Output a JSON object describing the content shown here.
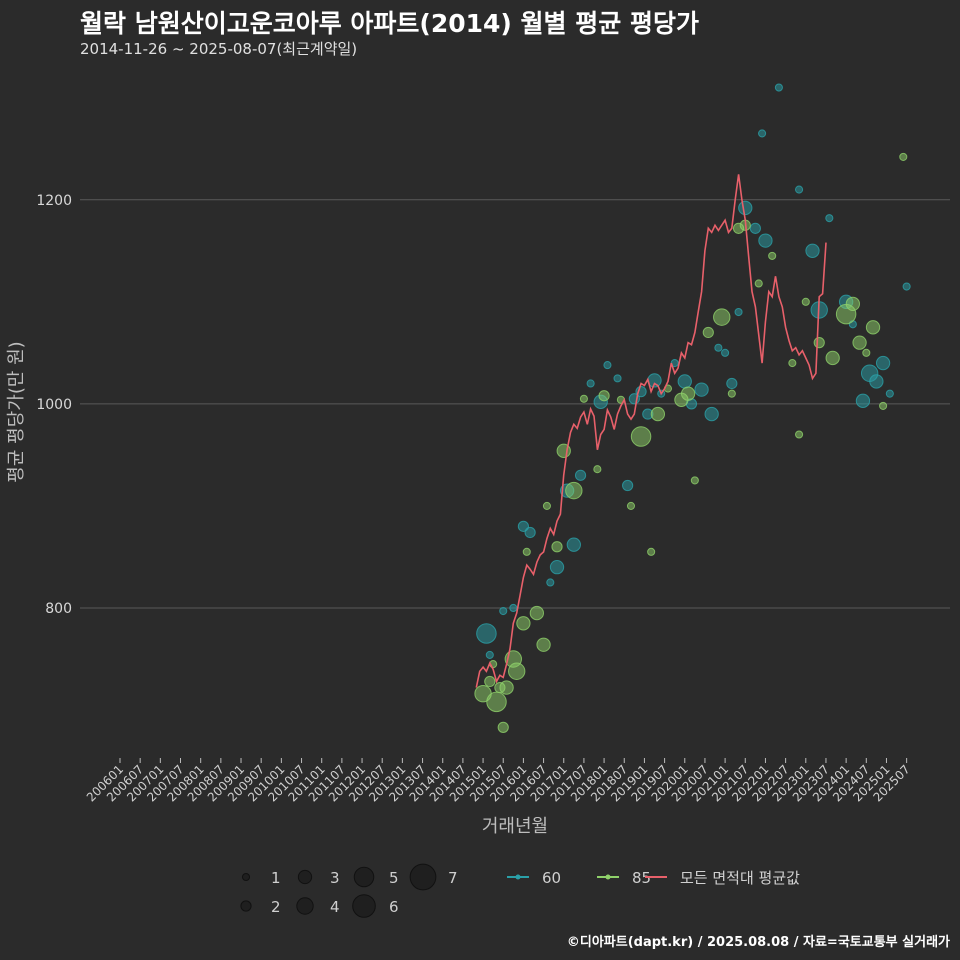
{
  "header": {
    "title": "월락 남원산이고운코아루 아파트(2014) 월별 평균 평당가",
    "subtitle": "2014-11-26 ~ 2025-08-07(최근계약일)"
  },
  "footer": {
    "credit": "©디아파트(dapt.kr) / 2025.08.08 / 자료=국토교통부 실거래가"
  },
  "colors": {
    "background": "#2b2b2b",
    "grid": "#5a5a5a",
    "s60": "#2aa0a8",
    "s85": "#8fd16a",
    "avg": "#e8606a"
  },
  "chart_data": {
    "type": "scatter",
    "xlabel": "거래년월",
    "ylabel": "평균 평당가(만 원)",
    "x_ticks": [
      "200601",
      "200607",
      "200701",
      "200707",
      "200801",
      "200807",
      "200901",
      "200907",
      "201001",
      "201007",
      "201101",
      "201107",
      "201201",
      "201207",
      "201301",
      "201307",
      "201401",
      "201407",
      "201501",
      "201507",
      "201601",
      "201607",
      "201701",
      "201707",
      "201801",
      "201807",
      "201901",
      "201907",
      "202001",
      "202007",
      "202101",
      "202107",
      "202201",
      "202207",
      "202301",
      "202307",
      "202401",
      "202407",
      "202501",
      "202507"
    ],
    "y_ticks": [
      800,
      1000,
      1200
    ],
    "x_range": [
      "200601",
      "202508"
    ],
    "y_range": [
      653,
      1335
    ],
    "grid": "horizontal",
    "legend": {
      "position": "bottom",
      "size_title": "",
      "size_values": [
        1,
        2,
        3,
        4,
        5,
        6,
        7
      ],
      "series_labels": [
        "60",
        "85",
        "모든 면적대 평균값"
      ]
    },
    "series": [
      {
        "name": "60",
        "points": [
          [
            "201502",
            775,
            5
          ],
          [
            "201503",
            754,
            1
          ],
          [
            "201507",
            797,
            1
          ],
          [
            "201510",
            800,
            1
          ],
          [
            "201601",
            880,
            2
          ],
          [
            "201603",
            874,
            2
          ],
          [
            "201609",
            825,
            1
          ],
          [
            "201611",
            840,
            3
          ],
          [
            "201702",
            915,
            3
          ],
          [
            "201704",
            862,
            3
          ],
          [
            "201706",
            930,
            2
          ],
          [
            "201709",
            1020,
            1
          ],
          [
            "201712",
            1002,
            3
          ],
          [
            "201802",
            1038,
            1
          ],
          [
            "201805",
            1025,
            1
          ],
          [
            "201808",
            920,
            2
          ],
          [
            "201810",
            1005,
            2
          ],
          [
            "201812",
            1012,
            2
          ],
          [
            "201902",
            990,
            2
          ],
          [
            "201904",
            1023,
            3
          ],
          [
            "201906",
            1010,
            1
          ],
          [
            "201910",
            1040,
            1
          ],
          [
            "202001",
            1022,
            3
          ],
          [
            "202003",
            1000,
            2
          ],
          [
            "202006",
            1014,
            3
          ],
          [
            "202009",
            990,
            3
          ],
          [
            "202011",
            1055,
            1
          ],
          [
            "202101",
            1050,
            1
          ],
          [
            "202103",
            1020,
            2
          ],
          [
            "202105",
            1090,
            1
          ],
          [
            "202107",
            1192,
            3
          ],
          [
            "202110",
            1172,
            2
          ],
          [
            "202112",
            1265,
            1
          ],
          [
            "202201",
            1160,
            3
          ],
          [
            "202205",
            1310,
            1
          ],
          [
            "202211",
            1210,
            1
          ],
          [
            "202303",
            1150,
            3
          ],
          [
            "202305",
            1092,
            4
          ],
          [
            "202308",
            1182,
            1
          ],
          [
            "202401",
            1100,
            3
          ],
          [
            "202403",
            1078,
            1
          ],
          [
            "202406",
            1003,
            3
          ],
          [
            "202408",
            1030,
            4
          ],
          [
            "202410",
            1022,
            3
          ],
          [
            "202412",
            1040,
            3
          ],
          [
            "202502",
            1010,
            1
          ],
          [
            "202507",
            1115,
            1
          ]
        ]
      },
      {
        "name": "85",
        "points": [
          [
            "201501",
            716,
            4
          ],
          [
            "201503",
            728,
            2
          ],
          [
            "201504",
            745,
            1
          ],
          [
            "201505",
            708,
            5
          ],
          [
            "201506",
            722,
            2
          ],
          [
            "201507",
            683,
            2
          ],
          [
            "201508",
            722,
            3
          ],
          [
            "201510",
            750,
            4
          ],
          [
            "201511",
            738,
            4
          ],
          [
            "201601",
            785,
            3
          ],
          [
            "201602",
            855,
            1
          ],
          [
            "201605",
            795,
            3
          ],
          [
            "201607",
            764,
            3
          ],
          [
            "201608",
            900,
            1
          ],
          [
            "201611",
            860,
            2
          ],
          [
            "201701",
            954,
            3
          ],
          [
            "201704",
            915,
            4
          ],
          [
            "201707",
            1005,
            1
          ],
          [
            "201711",
            936,
            1
          ],
          [
            "201801",
            1008,
            2
          ],
          [
            "201806",
            1004,
            1
          ],
          [
            "201809",
            900,
            1
          ],
          [
            "201812",
            968,
            5
          ],
          [
            "201903",
            855,
            1
          ],
          [
            "201905",
            990,
            3
          ],
          [
            "201908",
            1015,
            1
          ],
          [
            "201912",
            1004,
            3
          ],
          [
            "202002",
            1010,
            3
          ],
          [
            "202004",
            925,
            1
          ],
          [
            "202008",
            1070,
            2
          ],
          [
            "202012",
            1085,
            4
          ],
          [
            "202103",
            1010,
            1
          ],
          [
            "202105",
            1172,
            2
          ],
          [
            "202107",
            1175,
            2
          ],
          [
            "202111",
            1118,
            1
          ],
          [
            "202203",
            1145,
            1
          ],
          [
            "202209",
            1040,
            1
          ],
          [
            "202211",
            970,
            1
          ],
          [
            "202301",
            1100,
            1
          ],
          [
            "202305",
            1060,
            2
          ],
          [
            "202309",
            1045,
            3
          ],
          [
            "202401",
            1088,
            5
          ],
          [
            "202403",
            1098,
            3
          ],
          [
            "202405",
            1060,
            3
          ],
          [
            "202407",
            1050,
            1
          ],
          [
            "202409",
            1075,
            3
          ],
          [
            "202412",
            998,
            1
          ],
          [
            "202506",
            1242,
            1
          ]
        ]
      }
    ],
    "average": {
      "name": "모든 면적대 평균값",
      "points": [
        [
          "201411",
          722
        ],
        [
          "201412",
          738
        ],
        [
          "201501",
          742
        ],
        [
          "201502",
          738
        ],
        [
          "201503",
          746
        ],
        [
          "201504",
          740
        ],
        [
          "201505",
          728
        ],
        [
          "201506",
          734
        ],
        [
          "201507",
          732
        ],
        [
          "201508",
          745
        ],
        [
          "201509",
          760
        ],
        [
          "201510",
          785
        ],
        [
          "201511",
          795
        ],
        [
          "201512",
          812
        ],
        [
          "201601",
          830
        ],
        [
          "201602",
          842
        ],
        [
          "201603",
          838
        ],
        [
          "201604",
          833
        ],
        [
          "201605",
          845
        ],
        [
          "201606",
          852
        ],
        [
          "201607",
          855
        ],
        [
          "201608",
          868
        ],
        [
          "201609",
          878
        ],
        [
          "201610",
          872
        ],
        [
          "201611",
          885
        ],
        [
          "201612",
          892
        ],
        [
          "201701",
          930
        ],
        [
          "201702",
          955
        ],
        [
          "201703",
          972
        ],
        [
          "201704",
          980
        ],
        [
          "201705",
          976
        ],
        [
          "201706",
          987
        ],
        [
          "201707",
          992
        ],
        [
          "201708",
          980
        ],
        [
          "201709",
          995
        ],
        [
          "201710",
          988
        ],
        [
          "201711",
          955
        ],
        [
          "201712",
          970
        ],
        [
          "201801",
          975
        ],
        [
          "201802",
          994
        ],
        [
          "201803",
          987
        ],
        [
          "201804",
          975
        ],
        [
          "201805",
          990
        ],
        [
          "201806",
          998
        ],
        [
          "201807",
          1004
        ],
        [
          "201808",
          990
        ],
        [
          "201809",
          985
        ],
        [
          "201810",
          990
        ],
        [
          "201811",
          1010
        ],
        [
          "201812",
          1020
        ],
        [
          "201901",
          1018
        ],
        [
          "201902",
          1024
        ],
        [
          "201903",
          1012
        ],
        [
          "201904",
          1020
        ],
        [
          "201905",
          1018
        ],
        [
          "201906",
          1010
        ],
        [
          "201907",
          1015
        ],
        [
          "201908",
          1022
        ],
        [
          "201909",
          1040
        ],
        [
          "201910",
          1030
        ],
        [
          "201911",
          1035
        ],
        [
          "201912",
          1050
        ],
        [
          "202001",
          1045
        ],
        [
          "202002",
          1060
        ],
        [
          "202003",
          1058
        ],
        [
          "202004",
          1070
        ],
        [
          "202005",
          1090
        ],
        [
          "202006",
          1110
        ],
        [
          "202007",
          1150
        ],
        [
          "202008",
          1172
        ],
        [
          "202009",
          1168
        ],
        [
          "202010",
          1175
        ],
        [
          "202011",
          1170
        ],
        [
          "202012",
          1175
        ],
        [
          "202101",
          1180
        ],
        [
          "202102",
          1168
        ],
        [
          "202103",
          1172
        ],
        [
          "202104",
          1200
        ],
        [
          "202105",
          1225
        ],
        [
          "202106",
          1200
        ],
        [
          "202107",
          1180
        ],
        [
          "202108",
          1145
        ],
        [
          "202109",
          1110
        ],
        [
          "202110",
          1095
        ],
        [
          "202111",
          1068
        ],
        [
          "202112",
          1040
        ],
        [
          "202201",
          1080
        ],
        [
          "202202",
          1110
        ],
        [
          "202203",
          1105
        ],
        [
          "202204",
          1125
        ],
        [
          "202205",
          1105
        ],
        [
          "202206",
          1095
        ],
        [
          "202207",
          1075
        ],
        [
          "202208",
          1062
        ],
        [
          "202209",
          1052
        ],
        [
          "202210",
          1055
        ],
        [
          "202211",
          1048
        ],
        [
          "202212",
          1052
        ],
        [
          "202301",
          1045
        ],
        [
          "202302",
          1038
        ],
        [
          "202303",
          1025
        ],
        [
          "202304",
          1030
        ],
        [
          "202305",
          1105
        ],
        [
          "202306",
          1108
        ],
        [
          "202307",
          1158
        ]
      ]
    }
  }
}
